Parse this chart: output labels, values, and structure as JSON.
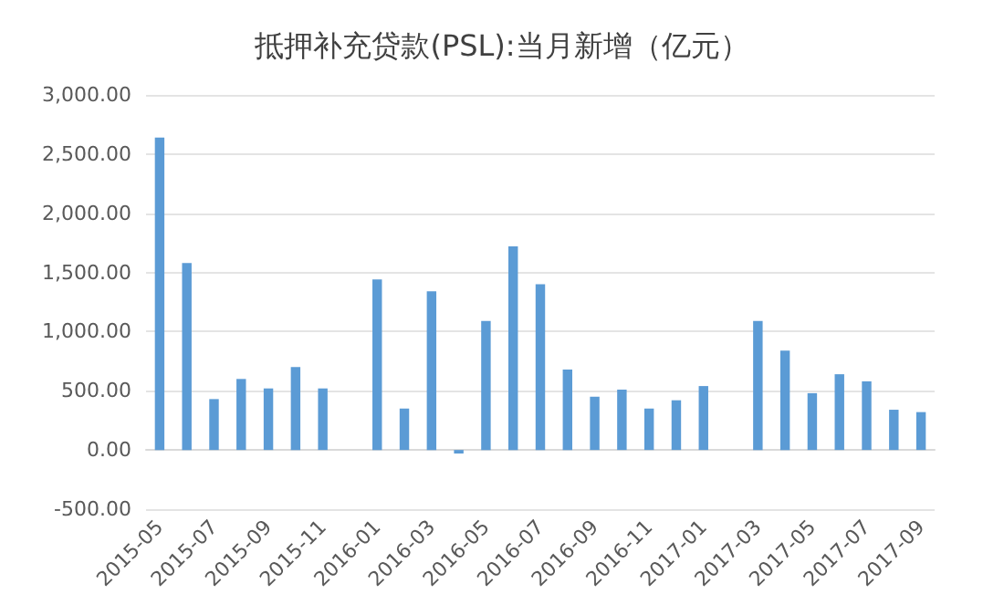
{
  "chart_data": {
    "type": "bar",
    "title": "抵押补充贷款(PSL):当月新增（亿元）",
    "categories": [
      "2015-05",
      null,
      "2015-07",
      null,
      "2015-09",
      null,
      "2015-11",
      null,
      "2016-01",
      null,
      "2016-03",
      null,
      "2016-05",
      null,
      "2016-07",
      null,
      "2016-09",
      null,
      "2016-11",
      null,
      "2017-01",
      null,
      "2017-03",
      null,
      "2017-05",
      null,
      "2017-07",
      null,
      "2017-09"
    ],
    "values": [
      2640,
      1580,
      430,
      600,
      520,
      700,
      520,
      0,
      1440,
      350,
      1340,
      -30,
      1090,
      1720,
      1400,
      680,
      450,
      510,
      350,
      420,
      540,
      0,
      1090,
      840,
      480,
      640,
      580,
      340,
      320
    ],
    "color": "#5b9bd5",
    "ylim": [
      -500,
      3000
    ],
    "yticks": [
      {
        "value": -500,
        "label": "-500.00"
      },
      {
        "value": 0,
        "label": "0.00"
      },
      {
        "value": 500,
        "label": "500.00"
      },
      {
        "value": 1000,
        "label": "1,000.00"
      },
      {
        "value": 1500,
        "label": "1,500.00"
      },
      {
        "value": 2000,
        "label": "2,000.00"
      },
      {
        "value": 2500,
        "label": "2,500.00"
      },
      {
        "value": 3000,
        "label": "3,000.00"
      }
    ],
    "grid": "y"
  }
}
